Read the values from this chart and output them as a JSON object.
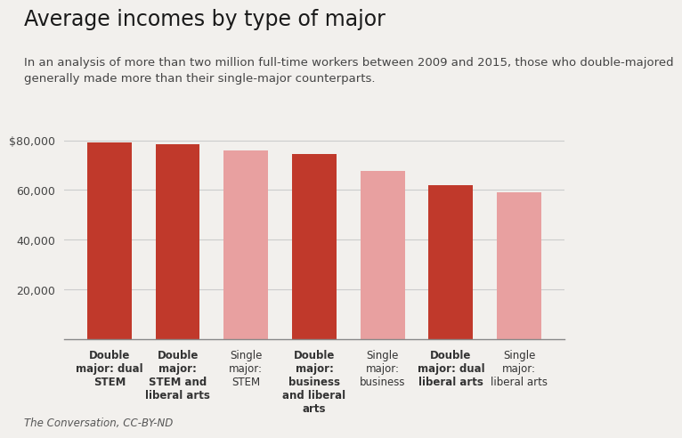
{
  "title": "Average incomes by type of major",
  "subtitle": "In an analysis of more than two million full-time workers between 2009 and 2015, those who double-majored\ngenerally made more than their single-major counterparts.",
  "categories": [
    "Double\nmajor: dual\nSTEM",
    "Double\nmajor:\nSTEM and\nliberal arts",
    "Single\nmajor:\nSTEM",
    "Double\nmajor:\nbusiness\nand liberal\narts",
    "Single\nmajor:\nbusiness",
    "Double\nmajor: dual\nliberal arts",
    "Single\nmajor:\nliberal arts"
  ],
  "values": [
    79000,
    78500,
    76000,
    74500,
    67500,
    62000,
    59000
  ],
  "colors": [
    "#c0392b",
    "#c0392b",
    "#e8a0a0",
    "#c0392b",
    "#e8a0a0",
    "#c0392b",
    "#e8a0a0"
  ],
  "double_major_bold": [
    true,
    true,
    false,
    true,
    false,
    true,
    false
  ],
  "ylim": [
    0,
    88000
  ],
  "yticks": [
    20000,
    40000,
    60000,
    80000
  ],
  "ytick_labels": [
    "20,000",
    "40,000",
    "60,000",
    "$80,000"
  ],
  "source": "The Conversation, CC-BY-ND",
  "background_color": "#f2f0ed",
  "title_fontsize": 17,
  "subtitle_fontsize": 9.5,
  "xtick_fontsize": 8.5,
  "ytick_fontsize": 9,
  "source_fontsize": 8.5
}
